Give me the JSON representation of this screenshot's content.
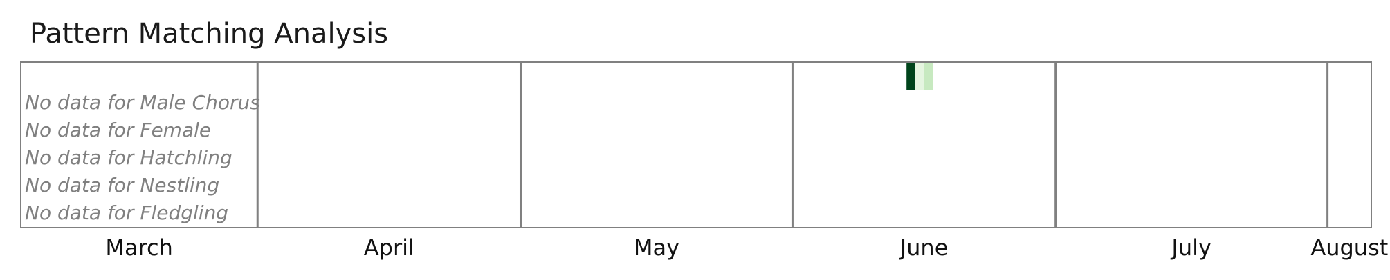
{
  "chart_data": {
    "type": "heatmap",
    "title": "Pattern Matching Analysis",
    "x_axis": {
      "type": "date",
      "range": [
        "2024-03-05",
        "2024-08-05"
      ],
      "months": [
        {
          "name": "March",
          "start": "2024-03-05",
          "end": "2024-03-31"
        },
        {
          "name": "April",
          "start": "2024-04-01",
          "end": "2024-04-30"
        },
        {
          "name": "May",
          "start": "2024-05-01",
          "end": "2024-05-31"
        },
        {
          "name": "June",
          "start": "2024-06-01",
          "end": "2024-06-30"
        },
        {
          "name": "July",
          "start": "2024-07-01",
          "end": "2024-07-31"
        },
        {
          "name": "August",
          "start": "2024-08-01",
          "end": "2024-08-05"
        }
      ]
    },
    "rows": [
      {
        "name": "Male Chorus",
        "message": "No data for Male Chorus"
      },
      {
        "name": "Female",
        "message": "No data for Female"
      },
      {
        "name": "Hatchling",
        "message": "No data for Hatchling"
      },
      {
        "name": "Nestling",
        "message": "No data for Nestling"
      },
      {
        "name": "Fledgling",
        "message": "No data for Fledgling"
      }
    ],
    "cells": [
      {
        "date": "2024-06-14",
        "color": "#00441b"
      },
      {
        "date": "2024-06-15",
        "color": "#e5f5e0"
      },
      {
        "date": "2024-06-16",
        "color": "#c7e9c0"
      }
    ],
    "colors": {
      "frame": "#808080",
      "no_data_text": "#808080"
    }
  }
}
